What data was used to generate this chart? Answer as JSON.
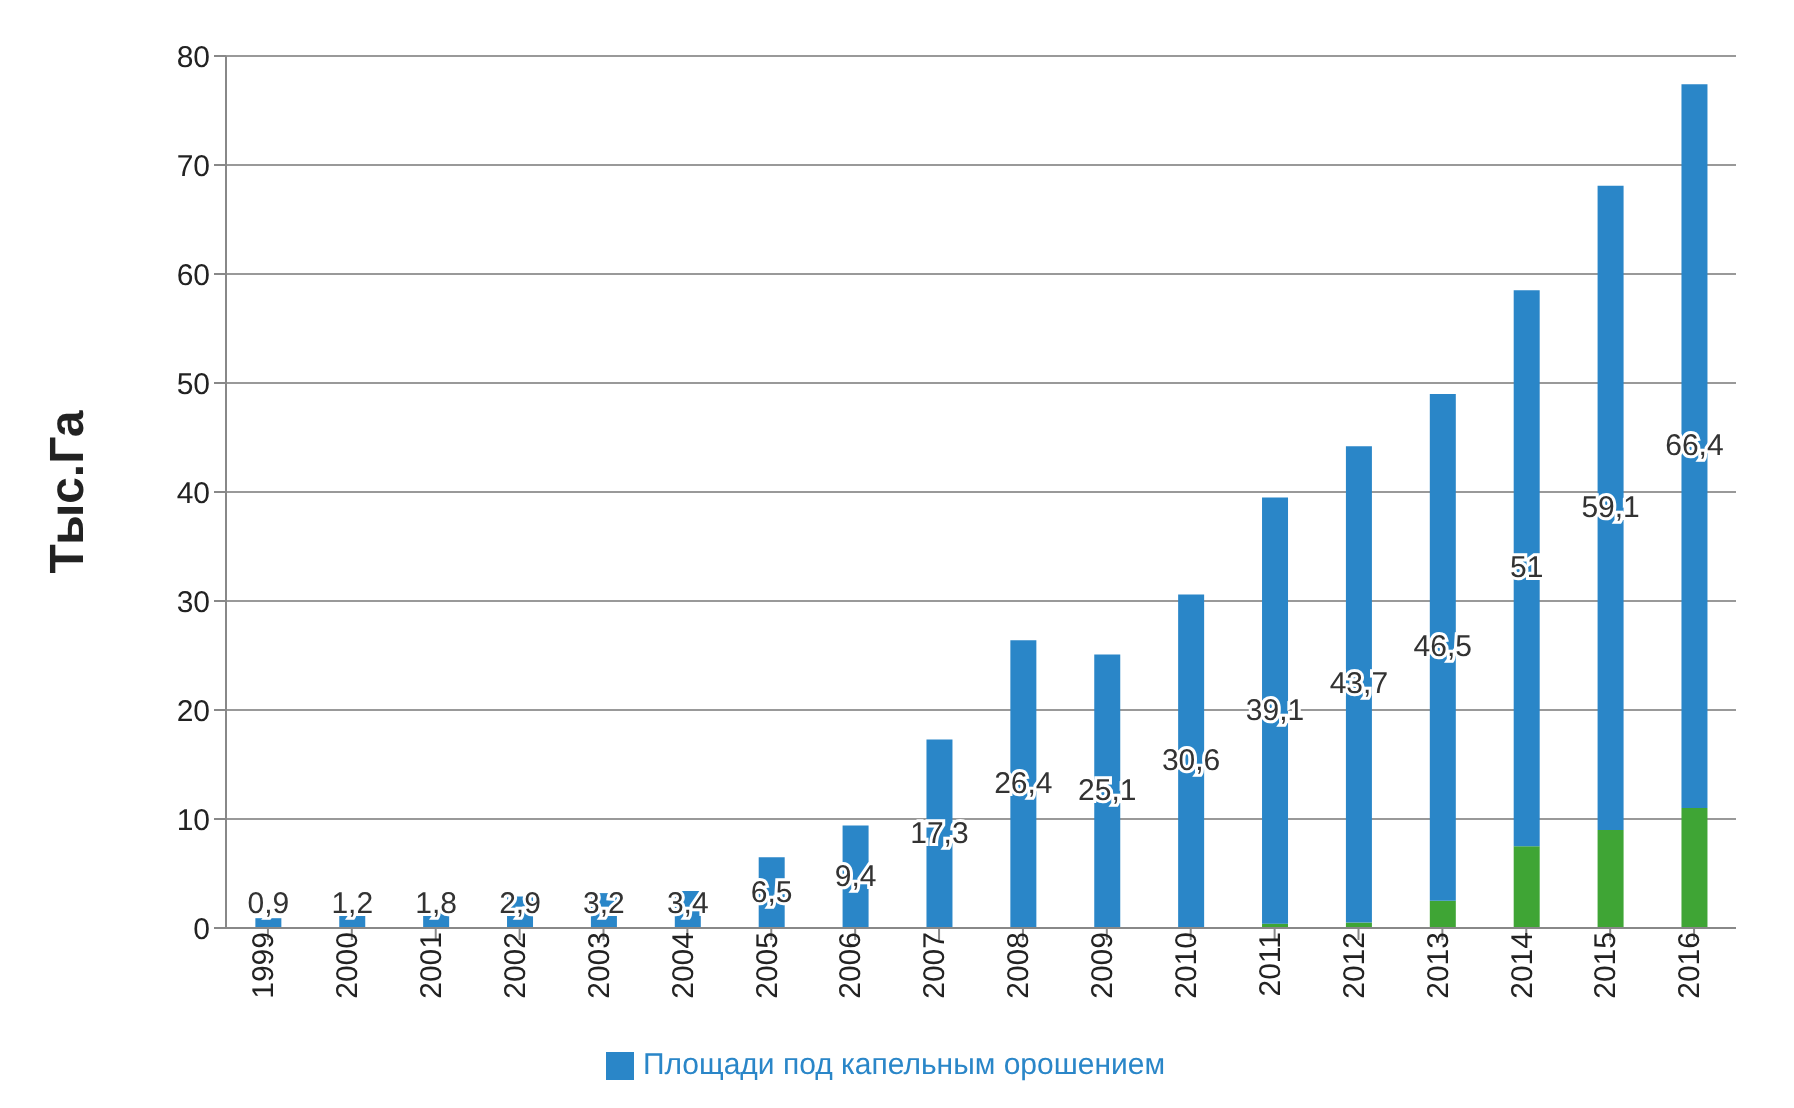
{
  "chart_data": {
    "type": "bar",
    "stacked": true,
    "ylabel": "Тыс.Га",
    "categories": [
      "1999",
      "2000",
      "2001",
      "2002",
      "2003",
      "2004",
      "2005",
      "2006",
      "2007",
      "2008",
      "2009",
      "2010",
      "2011",
      "2012",
      "2013",
      "2014",
      "2015",
      "2016"
    ],
    "series": [
      {
        "color": "#3fa535",
        "values": [
          0,
          0,
          0,
          0,
          0,
          0,
          0,
          0,
          0,
          0,
          0,
          0,
          0.4,
          0.5,
          2.5,
          7.5,
          9,
          11
        ]
      },
      {
        "name": "Площади под капельным орошением",
        "color": "#2a86c8",
        "values": [
          0.9,
          1.2,
          1.8,
          2.9,
          3.2,
          3.4,
          6.5,
          9.4,
          17.3,
          26.4,
          25.1,
          30.6,
          39.1,
          43.7,
          46.5,
          51,
          59.1,
          66.4
        ],
        "value_labels": [
          "0,9",
          "1,2",
          "1,8",
          "2,9",
          "3,2",
          "3,4",
          "6,5",
          "9,4",
          "17,3",
          "26,4",
          "25,1",
          "30,6",
          "39,1",
          "43,7",
          "46,5",
          "51",
          "59,1",
          "66,4"
        ]
      }
    ],
    "ylim": [
      0,
      80
    ],
    "yticks": [
      0,
      10,
      20,
      30,
      40,
      50,
      60,
      70,
      80
    ],
    "grid": "y",
    "legend": "bottom"
  }
}
